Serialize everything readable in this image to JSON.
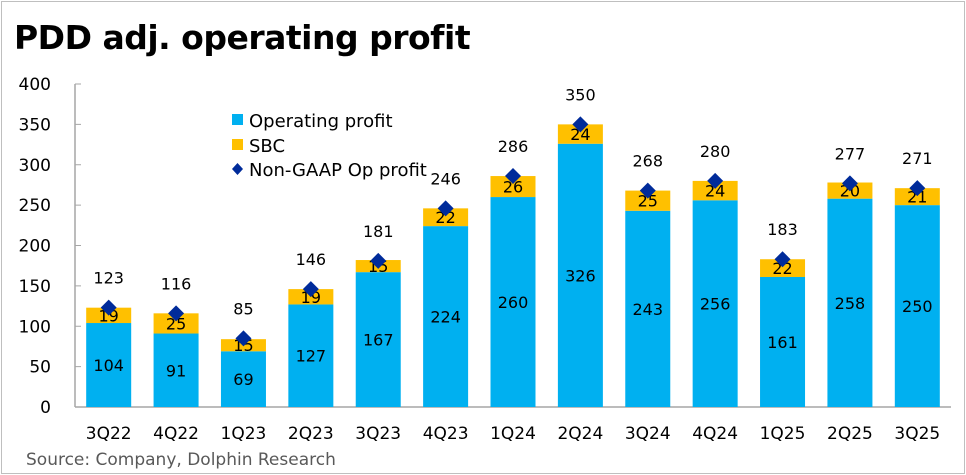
{
  "chart_data": {
    "type": "bar",
    "stacked": true,
    "title": "PDD adj. operating profit",
    "source": "Source: Company, Dolphin Research",
    "categories": [
      "3Q22",
      "4Q22",
      "1Q23",
      "2Q23",
      "3Q23",
      "4Q23",
      "1Q24",
      "2Q24",
      "3Q24",
      "4Q24",
      "1Q25",
      "2Q25",
      "3Q25"
    ],
    "series": [
      {
        "name": "Operating profit",
        "type": "bar",
        "color": "#00b0f0",
        "values": [
          104,
          91,
          69,
          127,
          167,
          224,
          260,
          326,
          243,
          256,
          161,
          258,
          250
        ]
      },
      {
        "name": "SBC",
        "type": "bar",
        "color": "#ffc000",
        "values": [
          19,
          25,
          15,
          19,
          15,
          22,
          26,
          24,
          25,
          24,
          22,
          20,
          21
        ]
      },
      {
        "name": "Non-GAAP Op profit",
        "type": "marker",
        "color": "#002b9a",
        "values": [
          123,
          116,
          85,
          146,
          181,
          246,
          286,
          350,
          268,
          280,
          183,
          277,
          271
        ]
      }
    ],
    "ylim": [
      0,
      400
    ],
    "yticks": [
      0,
      50,
      100,
      150,
      200,
      250,
      300,
      350,
      400
    ],
    "legend": "top-left",
    "grid": false
  }
}
